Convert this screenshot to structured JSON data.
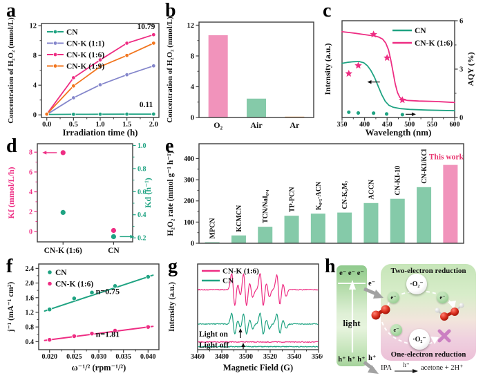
{
  "panels": {
    "a": {
      "letter": "a"
    },
    "b": {
      "letter": "b"
    },
    "c": {
      "letter": "c"
    },
    "d": {
      "letter": "d"
    },
    "e": {
      "letter": "e"
    },
    "f": {
      "letter": "f"
    },
    "g": {
      "letter": "g"
    },
    "h": {
      "letter": "h"
    }
  },
  "colors": {
    "green": "#1fa382",
    "pink": "#ee2d83",
    "purple": "#8486cb",
    "orange": "#f2761f",
    "bar_green": "#85caa9",
    "bar_pink": "#f193bb",
    "this_work": "#e8356f",
    "axis": "#3d3d3d"
  },
  "chart_data": [
    {
      "id": "a",
      "type": "line",
      "xlabel": "Irradiation time (h)",
      "ylabel": "Concentration of H₂O₂ (mmol/L)",
      "xlim": [
        -0.1,
        2.1
      ],
      "ylim": [
        -0.35,
        12.3
      ],
      "xticks": [
        0,
        0.5,
        1,
        1.5,
        2
      ],
      "xtick_labels": [
        "0.0",
        "0.5",
        "1.0",
        "1.5",
        "2.0"
      ],
      "yticks": [
        0,
        4,
        8,
        12
      ],
      "legend_position": "top-left",
      "series": [
        {
          "name": "CN",
          "color": "#1fa382",
          "x": [
            0,
            0.5,
            1,
            1.5,
            2
          ],
          "y": [
            0.06,
            0.08,
            0.09,
            0.1,
            0.11
          ]
        },
        {
          "name": "CN-K (1:1)",
          "color": "#8486cb",
          "x": [
            0,
            0.5,
            1,
            1.5,
            2
          ],
          "y": [
            0.05,
            2.3,
            4.05,
            5.4,
            6.6
          ]
        },
        {
          "name": "CN-K (1:6)",
          "color": "#ee2d83",
          "x": [
            0,
            0.5,
            1,
            1.5,
            2
          ],
          "y": [
            0.1,
            5.0,
            7.4,
            9.65,
            10.79
          ]
        },
        {
          "name": "CN-K (1:9)",
          "color": "#f2761f",
          "x": [
            0,
            0.5,
            1,
            1.5,
            2
          ],
          "y": [
            0.1,
            3.9,
            6.5,
            8.0,
            9.65
          ]
        }
      ],
      "annotations": [
        {
          "text": "10.79",
          "x": 1.86,
          "y": 11.55
        },
        {
          "text": "0.11",
          "x": 1.86,
          "y": 1.05
        }
      ]
    },
    {
      "id": "b",
      "type": "bar",
      "ylabel": "Concentration of H₂O₂ (mmol/L)",
      "categories": [
        "O₂",
        "Air",
        "Ar"
      ],
      "values": [
        10.7,
        2.45,
        0.07
      ],
      "bar_colors": [
        "#f193bb",
        "#85caa9",
        "#e89b50"
      ],
      "ylim": [
        0,
        12.4
      ],
      "yticks": [
        0,
        4,
        8,
        12
      ]
    },
    {
      "id": "c",
      "type": "line+scatter",
      "xlabel": "Wavelength (nm)",
      "ylabel_left": "Intensity (a.u.)",
      "ylabel_right": "AQY (%)",
      "xlim": [
        350,
        600
      ],
      "xticks": [
        350,
        400,
        450,
        500,
        550,
        600
      ],
      "ylim_right": [
        0,
        6
      ],
      "yticks_right": [
        0,
        3,
        6
      ],
      "curves": [
        {
          "name": "CN",
          "color": "#1fa382",
          "points": [
            [
              350,
              3.36
            ],
            [
              362,
              3.42
            ],
            [
              375,
              3.46
            ],
            [
              388,
              3.47
            ],
            [
              398,
              3.4
            ],
            [
              406,
              3.22
            ],
            [
              414,
              2.92
            ],
            [
              422,
              2.5
            ],
            [
              430,
              1.95
            ],
            [
              438,
              1.42
            ],
            [
              446,
              1.0
            ],
            [
              454,
              0.76
            ],
            [
              464,
              0.63
            ],
            [
              480,
              0.55
            ],
            [
              500,
              0.5
            ],
            [
              540,
              0.46
            ],
            [
              600,
              0.42
            ]
          ]
        },
        {
          "name": "CN-K (1:6)",
          "color": "#ee2d83",
          "points": [
            [
              350,
              5.32
            ],
            [
              365,
              5.27
            ],
            [
              380,
              5.22
            ],
            [
              395,
              5.16
            ],
            [
              410,
              5.1
            ],
            [
              422,
              5.06
            ],
            [
              432,
              4.98
            ],
            [
              440,
              4.86
            ],
            [
              447,
              4.62
            ],
            [
              453,
              4.2
            ],
            [
              458,
              3.6
            ],
            [
              463,
              2.85
            ],
            [
              468,
              2.1
            ],
            [
              473,
              1.55
            ],
            [
              478,
              1.25
            ],
            [
              484,
              1.12
            ],
            [
              495,
              1.06
            ],
            [
              520,
              1.02
            ],
            [
              560,
              0.99
            ],
            [
              600,
              0.93
            ]
          ]
        }
      ],
      "scatter": [
        {
          "name": "CN-K (1:6) AQY",
          "marker": "star",
          "color": "#ee2d83",
          "points": [
            [
              365,
              2.72
            ],
            [
              386,
              3.22
            ],
            [
              420,
              5.15
            ],
            [
              450,
              3.7
            ],
            [
              484,
              1.08
            ]
          ]
        },
        {
          "name": "CN AQY",
          "marker": "circle",
          "color": "#1fa382",
          "points": [
            [
              365,
              0.33
            ],
            [
              386,
              0.28
            ],
            [
              420,
              0.27
            ],
            [
              449,
              0.22
            ],
            [
              484,
              0.18
            ]
          ]
        }
      ]
    },
    {
      "id": "d",
      "type": "scatter",
      "categories": [
        "CN-K (1:6)",
        "CN"
      ],
      "ylabel_left": "Kf (mmol/L/h)",
      "ylabel_right": "Kd (h⁻¹)",
      "yticks_left": [
        0,
        2,
        4,
        6,
        8
      ],
      "ylim_left": [
        -1.05,
        8.85
      ],
      "ytick_labels_right": [
        "0.2",
        "0.4",
        "0.6",
        "0.8",
        "1.0"
      ],
      "yticks_right": [
        0.2,
        0.4,
        0.6,
        0.8,
        1.0
      ],
      "ylim_right": [
        0.165,
        1.015
      ],
      "kf_values": [
        7.95,
        0.1
      ],
      "kd_values": [
        0.42,
        0.21
      ]
    },
    {
      "id": "e",
      "type": "bar",
      "ylabel": "H₂O₂ rate (mmol g⁻¹ h⁻¹)",
      "categories": [
        "MPCN",
        "KCMCN",
        "TCN/NaI₀.₄",
        "TP-PCN",
        "K₀.₅-ACN",
        "CN-K₅M₇",
        "ACCN",
        "CN-KI-10",
        "CN-KI/KCl",
        "This work"
      ],
      "values": [
        5,
        37,
        78,
        130,
        140,
        145,
        190,
        210,
        265,
        370
      ],
      "ylim": [
        0,
        470
      ],
      "yticks": [
        0,
        100,
        200,
        300,
        400
      ],
      "highlight_index": 9,
      "highlight_label_color": "#e8356f",
      "bar_color": "#85caa9",
      "highlight_bar_color": "#f193bb"
    },
    {
      "id": "f",
      "type": "line",
      "xlabel": "ω⁻¹/² (rpm⁻¹/²)",
      "ylabel": "j⁻¹ (mA⁻¹ cm²)",
      "xlim": [
        0.0178,
        0.0422
      ],
      "ylim": [
        0.18,
        2.52
      ],
      "xticks": [
        0.02,
        0.025,
        0.03,
        0.035,
        0.04
      ],
      "xtick_labels": [
        "0.020",
        "0.025",
        "0.030",
        "0.035",
        "0.040"
      ],
      "yticks": [
        0.4,
        0.8,
        1.2,
        1.6,
        2.0,
        2.4
      ],
      "ytick_labels": [
        "0.4",
        "0.8",
        "1.2",
        "1.6",
        "2.0",
        "2.4"
      ],
      "series": [
        {
          "name": "CN",
          "color": "#1fa382",
          "x": [
            0.02,
            0.025,
            0.0286,
            0.0333,
            0.04
          ],
          "y": [
            1.28,
            1.58,
            1.74,
            1.92,
            2.17
          ],
          "fit": [
            [
              0.019,
              1.235
            ],
            [
              0.041,
              2.215
            ]
          ],
          "annotation": "n=0.75",
          "annotation_xy": [
            0.0318,
            1.7
          ]
        },
        {
          "name": "CN-K (1:6)",
          "color": "#ee2d83",
          "x": [
            0.02,
            0.025,
            0.0286,
            0.0333,
            0.04
          ],
          "y": [
            0.45,
            0.55,
            0.62,
            0.7,
            0.8
          ],
          "fit": [
            [
              0.019,
              0.4325
            ],
            [
              0.041,
              0.8175
            ]
          ],
          "annotation": "n=1.81",
          "annotation_xy": [
            0.0318,
            0.53
          ]
        }
      ]
    },
    {
      "id": "g",
      "type": "epr",
      "xlabel": "Magnetic Field (G)",
      "ylabel": "Intensity (a.u.)",
      "xlim": [
        3460,
        3560
      ],
      "xticks": [
        3460,
        3480,
        3500,
        3520,
        3540,
        3560
      ],
      "peak_width": 1.9,
      "peaks": [
        {
          "c": 3489.5,
          "a": 1
        },
        {
          "c": 3494.3,
          "a": 0.4
        },
        {
          "c": 3499.2,
          "a": 1
        },
        {
          "c": 3504.2,
          "a": 0.45
        },
        {
          "c": 3513.0,
          "a": 1
        },
        {
          "c": 3518.0,
          "a": 0.45
        },
        {
          "c": 3526.8,
          "a": 0.92
        },
        {
          "c": 3531.8,
          "a": 0.4
        }
      ],
      "traces": [
        {
          "name": "CN-K (1:6)",
          "color": "#ee2d83",
          "base": 0.3,
          "half": 24,
          "signal": true
        },
        {
          "name": "CN",
          "color": "#1fa382",
          "base": 0.7,
          "half": 15.5,
          "signal": true
        },
        {
          "name": "CN-K (1:6) dark",
          "color": "#ee2d83",
          "base": 0.91,
          "half": 0,
          "signal": false
        },
        {
          "name": "CN dark",
          "color": "#1fa382",
          "base": 0.965,
          "half": 0,
          "signal": false
        }
      ],
      "legend": [
        {
          "name": "CN-K (1:6)",
          "color": "#ee2d83"
        },
        {
          "name": "CN",
          "color": "#1fa382"
        }
      ],
      "labels": {
        "light_on": "Light on",
        "light_off": "Light off"
      }
    }
  ],
  "panel_h": {
    "electrons": "e⁻ e⁻ e⁻",
    "light": "light",
    "holes": "h⁺ h⁺ h⁺",
    "hole_extra": "h⁺",
    "electron_arrow_label": "e⁻",
    "top_title": "Two-electron reduction",
    "bottom_title": "One-electron reduction",
    "superoxide": "·O₂⁻",
    "e_label": "e⁻",
    "ipa": "IPA",
    "arrow_label": "h⁺",
    "product": "acetone + 2H⁺",
    "cross_icon": "x-mark"
  }
}
